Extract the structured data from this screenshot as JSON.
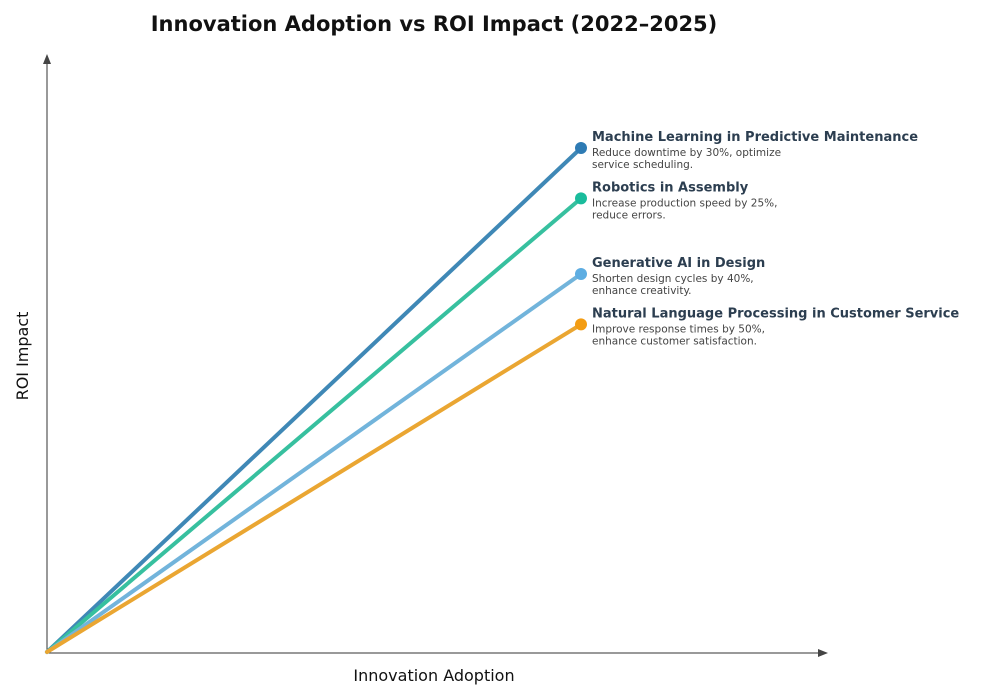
{
  "chart_data": {
    "type": "line",
    "title": "Innovation Adoption vs ROI Impact (2022–2025)",
    "xlabel": "Innovation Adoption",
    "ylabel": "ROI Impact",
    "grid": false,
    "legend": "none",
    "series": [
      {
        "name": "Machine Learning in Predictive Maintenance",
        "description": [
          "Reduce downtime by 30%, optimize",
          "service scheduling."
        ],
        "color": "#2e7bb4",
        "line_color": "#3f88b6",
        "x": [
          0,
          1
        ],
        "y": [
          0,
          1.0
        ]
      },
      {
        "name": "Robotics in Assembly",
        "description": [
          "Increase production speed by 25%,",
          "reduce errors."
        ],
        "color": "#1abc9c",
        "line_color": "#37c09f",
        "x": [
          0,
          1
        ],
        "y": [
          0,
          0.9
        ]
      },
      {
        "name": "Generative AI in Design",
        "description": [
          "Shorten design cycles by 40%,",
          "enhance creativity."
        ],
        "color": "#5dade2",
        "line_color": "#72b4db",
        "x": [
          0,
          1
        ],
        "y": [
          0,
          0.75
        ]
      },
      {
        "name": "Natural Language Processing in Customer Service",
        "description": [
          "Improve response times by 50%,",
          "enhance customer satisfaction."
        ],
        "color": "#f39c12",
        "line_color": "#eaa632",
        "x": [
          0,
          1
        ],
        "y": [
          0,
          0.65
        ]
      }
    ]
  }
}
